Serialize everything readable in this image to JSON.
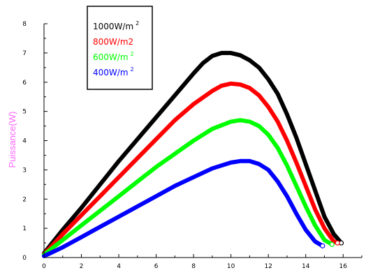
{
  "chart_data": {
    "type": "line",
    "xlabel": "",
    "ylabel": "Puissance(W)",
    "xlim": [
      0,
      17
    ],
    "ylim": [
      0,
      8
    ],
    "xticks": [
      "0",
      "2",
      "4",
      "6",
      "8",
      "10",
      "12",
      "14",
      "16"
    ],
    "yticks": [
      "0",
      "1",
      "2",
      "3",
      "4",
      "5",
      "6",
      "7",
      "8"
    ],
    "legend_position": "top-left",
    "axis_color": "#000000",
    "ylabel_color": "#ff66ff",
    "series": [
      {
        "name": "1000W/m",
        "sup": "2",
        "color": "#000000",
        "x": [
          0,
          0.5,
          1,
          2,
          3,
          4,
          5,
          6,
          7,
          8,
          8.5,
          9,
          9.5,
          10,
          10.5,
          11,
          11.5,
          12,
          12.5,
          13,
          13.5,
          14,
          14.5,
          15,
          15.5,
          15.9
        ],
        "y": [
          0.15,
          0.55,
          0.95,
          1.7,
          2.5,
          3.3,
          4.05,
          4.8,
          5.55,
          6.3,
          6.65,
          6.9,
          7.0,
          7.0,
          6.92,
          6.75,
          6.5,
          6.1,
          5.6,
          4.9,
          4.1,
          3.2,
          2.3,
          1.4,
          0.8,
          0.5
        ]
      },
      {
        "name": "800W/m2",
        "sup": "",
        "color": "#ff0000",
        "x": [
          0,
          0.5,
          1,
          2,
          3,
          4,
          5,
          6,
          7,
          8,
          9,
          9.5,
          10,
          10.5,
          11,
          11.5,
          12,
          12.5,
          13,
          13.5,
          14,
          14.5,
          15,
          15.5,
          15.7
        ],
        "y": [
          0.12,
          0.45,
          0.8,
          1.45,
          2.1,
          2.75,
          3.4,
          4.05,
          4.7,
          5.25,
          5.7,
          5.88,
          5.95,
          5.92,
          5.8,
          5.55,
          5.15,
          4.65,
          4.0,
          3.25,
          2.45,
          1.65,
          1.0,
          0.55,
          0.5
        ]
      },
      {
        "name": "600W/m",
        "sup": "2",
        "color": "#00ff00",
        "x": [
          0,
          0.5,
          1,
          2,
          3,
          4,
          5,
          6,
          7,
          8,
          9,
          10,
          10.5,
          11,
          11.5,
          12,
          12.5,
          13,
          13.5,
          14,
          14.5,
          15,
          15.4
        ],
        "y": [
          0.1,
          0.35,
          0.6,
          1.1,
          1.6,
          2.1,
          2.6,
          3.1,
          3.55,
          4.0,
          4.4,
          4.65,
          4.7,
          4.65,
          4.5,
          4.2,
          3.75,
          3.15,
          2.45,
          1.75,
          1.1,
          0.6,
          0.45
        ]
      },
      {
        "name": "400W/m",
        "sup": "2",
        "color": "#0000ff",
        "x": [
          0,
          0.5,
          1,
          2,
          3,
          4,
          5,
          6,
          7,
          8,
          9,
          10,
          10.5,
          11,
          11.5,
          12,
          12.5,
          13,
          13.5,
          14,
          14.5,
          14.9
        ],
        "y": [
          0.05,
          0.2,
          0.35,
          0.7,
          1.05,
          1.4,
          1.75,
          2.1,
          2.45,
          2.75,
          3.05,
          3.25,
          3.3,
          3.3,
          3.2,
          3.0,
          2.6,
          2.1,
          1.5,
          0.95,
          0.55,
          0.4
        ]
      }
    ]
  }
}
